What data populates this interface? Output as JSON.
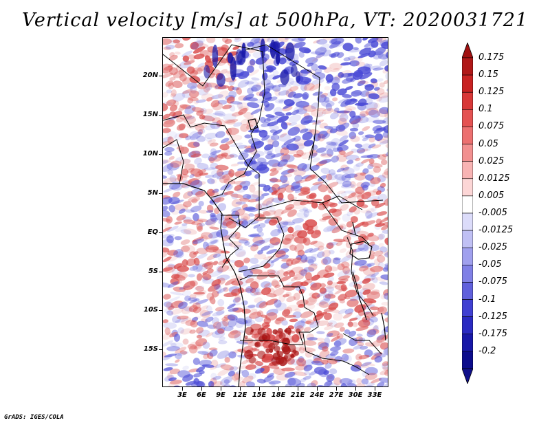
{
  "title": "Vertical velocity [m/s] at 500hPa, VT: 2020031721",
  "credit": "GrADS: IGES/COLA",
  "map": {
    "lat_labels": [
      "20N",
      "15N",
      "10N",
      "5N",
      "EQ",
      "5S",
      "10S",
      "15S"
    ],
    "lon_labels": [
      "3E",
      "6E",
      "9E",
      "12E",
      "15E",
      "18E",
      "21E",
      "24E",
      "27E",
      "30E",
      "33E"
    ],
    "features": [
      "vertical velocity field",
      "national borders",
      "coastline",
      "lakes"
    ],
    "strong_ascent_region": "southern Angola",
    "field_colors": {
      "negative": "#4a4ad6",
      "positive": "#d84848",
      "neutral": "#ffffff"
    }
  },
  "colorbar": {
    "labels": [
      "0.175",
      "0.15",
      "0.125",
      "0.1",
      "0.075",
      "0.05",
      "0.025",
      "0.0125",
      "0.005",
      "-0.005",
      "-0.0125",
      "-0.025",
      "-0.05",
      "-0.075",
      "-0.1",
      "-0.125",
      "-0.175",
      "-0.2"
    ],
    "colors": [
      "#b01818",
      "#c82222",
      "#d83838",
      "#e45252",
      "#ec7070",
      "#f29090",
      "#f8b4b4",
      "#fcd6d6",
      "#ffffff",
      "#dcdcfa",
      "#c0c0f4",
      "#a0a0ee",
      "#8080e6",
      "#6060dc",
      "#4040d2",
      "#2a2ac2",
      "#1818a8",
      "#0c0c8c"
    ],
    "top_arrow_color": "#a01010",
    "bottom_arrow_color": "#10108a"
  }
}
